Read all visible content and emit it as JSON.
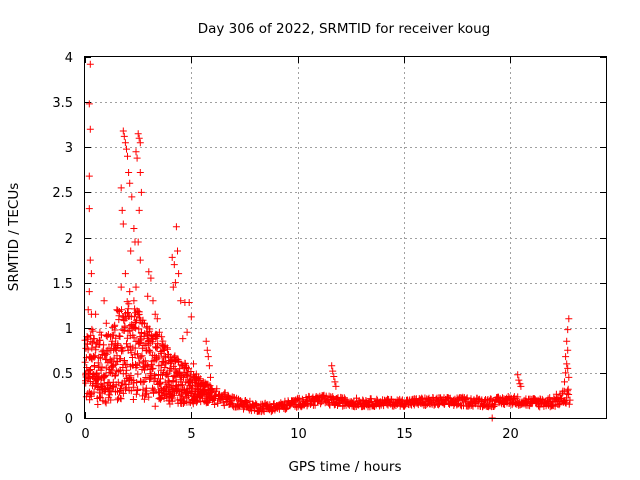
{
  "chart_data": {
    "type": "scatter",
    "title": "Day 306 of 2022, SRMTID for receiver koug",
    "xlabel": "GPS time / hours",
    "ylabel": "SRMTID / TECUs",
    "xlim": [
      0,
      24.5
    ],
    "ylim": [
      0,
      4
    ],
    "xticks": [
      0,
      5,
      10,
      15,
      20
    ],
    "yticks": [
      0,
      0.5,
      1,
      1.5,
      2,
      2.5,
      3,
      3.5,
      4
    ],
    "xtick_labels": [
      "0",
      "5",
      "10",
      "15",
      "20"
    ],
    "ytick_labels": [
      "0",
      "0.5",
      "1",
      "1.5",
      "2",
      "2.5",
      "3",
      "3.5",
      "4"
    ],
    "grid": true,
    "marker": "+",
    "series": [
      {
        "name": "SRMTID",
        "color": "#ff0000",
        "profile": [
          [
            0.0,
            0.55,
            0.35
          ],
          [
            0.3,
            0.6,
            0.4
          ],
          [
            0.6,
            0.55,
            0.35
          ],
          [
            1.0,
            0.55,
            0.4
          ],
          [
            1.5,
            0.7,
            0.5
          ],
          [
            2.0,
            0.75,
            0.55
          ],
          [
            2.5,
            0.7,
            0.5
          ],
          [
            3.0,
            0.6,
            0.4
          ],
          [
            3.5,
            0.55,
            0.35
          ],
          [
            4.0,
            0.45,
            0.3
          ],
          [
            4.5,
            0.4,
            0.25
          ],
          [
            5.0,
            0.35,
            0.2
          ],
          [
            5.5,
            0.3,
            0.12
          ],
          [
            6.0,
            0.25,
            0.1
          ],
          [
            7.0,
            0.18,
            0.06
          ],
          [
            8.0,
            0.12,
            0.05
          ],
          [
            9.0,
            0.12,
            0.05
          ],
          [
            10.0,
            0.17,
            0.05
          ],
          [
            11.0,
            0.2,
            0.06
          ],
          [
            12.0,
            0.18,
            0.05
          ],
          [
            13.0,
            0.17,
            0.05
          ],
          [
            14.0,
            0.17,
            0.04
          ],
          [
            15.0,
            0.17,
            0.04
          ],
          [
            16.0,
            0.18,
            0.05
          ],
          [
            17.0,
            0.18,
            0.05
          ],
          [
            18.0,
            0.18,
            0.05
          ],
          [
            19.0,
            0.17,
            0.05
          ],
          [
            20.0,
            0.2,
            0.05
          ],
          [
            21.0,
            0.17,
            0.05
          ],
          [
            22.0,
            0.18,
            0.06
          ],
          [
            22.8,
            0.25,
            0.1
          ]
        ],
        "outliers": [
          [
            0.25,
            3.92
          ],
          [
            0.2,
            3.48
          ],
          [
            0.25,
            3.2
          ],
          [
            0.2,
            2.68
          ],
          [
            0.2,
            2.32
          ],
          [
            0.25,
            1.75
          ],
          [
            0.3,
            1.6
          ],
          [
            0.2,
            1.4
          ],
          [
            0.15,
            1.2
          ],
          [
            0.3,
            1.15
          ],
          [
            1.8,
            3.18
          ],
          [
            1.85,
            3.12
          ],
          [
            1.9,
            3.05
          ],
          [
            1.95,
            2.98
          ],
          [
            2.0,
            2.9
          ],
          [
            2.05,
            2.72
          ],
          [
            2.1,
            2.6
          ],
          [
            1.7,
            2.55
          ],
          [
            1.75,
            2.3
          ],
          [
            1.8,
            2.15
          ],
          [
            2.2,
            2.45
          ],
          [
            2.3,
            2.1
          ],
          [
            2.35,
            1.95
          ],
          [
            2.15,
            1.85
          ],
          [
            1.9,
            1.6
          ],
          [
            2.4,
            2.95
          ],
          [
            2.45,
            2.88
          ],
          [
            2.5,
            3.15
          ],
          [
            2.55,
            3.1
          ],
          [
            2.6,
            3.05
          ],
          [
            2.6,
            2.72
          ],
          [
            2.65,
            2.5
          ],
          [
            2.55,
            2.3
          ],
          [
            2.5,
            1.95
          ],
          [
            2.6,
            1.75
          ],
          [
            2.4,
            1.45
          ],
          [
            2.3,
            1.3
          ],
          [
            2.1,
            1.4
          ],
          [
            1.7,
            1.45
          ],
          [
            1.5,
            1.2
          ],
          [
            3.0,
            1.62
          ],
          [
            3.1,
            1.55
          ],
          [
            2.95,
            1.35
          ],
          [
            3.2,
            1.3
          ],
          [
            3.3,
            1.15
          ],
          [
            2.8,
            1.05
          ],
          [
            2.9,
            1.0
          ],
          [
            3.4,
            1.1
          ],
          [
            3.5,
            0.95
          ],
          [
            3.6,
            0.9
          ],
          [
            4.1,
            1.78
          ],
          [
            4.2,
            1.7
          ],
          [
            4.3,
            2.12
          ],
          [
            4.35,
            1.85
          ],
          [
            4.4,
            1.6
          ],
          [
            4.25,
            1.5
          ],
          [
            4.15,
            1.45
          ],
          [
            4.5,
            1.3
          ],
          [
            4.7,
            1.28
          ],
          [
            4.9,
            1.28
          ],
          [
            5.0,
            1.12
          ],
          [
            4.8,
            0.95
          ],
          [
            4.6,
            0.88
          ],
          [
            5.1,
            0.6
          ],
          [
            5.15,
            0.45
          ],
          [
            5.7,
            0.85
          ],
          [
            5.75,
            0.75
          ],
          [
            5.8,
            0.68
          ],
          [
            5.85,
            0.58
          ],
          [
            5.9,
            0.45
          ],
          [
            11.6,
            0.58
          ],
          [
            11.65,
            0.52
          ],
          [
            11.7,
            0.46
          ],
          [
            11.75,
            0.4
          ],
          [
            11.8,
            0.35
          ],
          [
            20.35,
            0.48
          ],
          [
            20.4,
            0.42
          ],
          [
            20.45,
            0.38
          ],
          [
            20.5,
            0.35
          ],
          [
            19.15,
            0.0
          ],
          [
            22.75,
            1.1
          ],
          [
            22.7,
            0.98
          ],
          [
            22.65,
            0.85
          ],
          [
            22.7,
            0.75
          ],
          [
            22.6,
            0.68
          ],
          [
            22.65,
            0.6
          ],
          [
            22.7,
            0.55
          ],
          [
            22.6,
            0.5
          ],
          [
            22.75,
            0.45
          ],
          [
            22.55,
            0.4
          ],
          [
            0.5,
            1.15
          ],
          [
            0.7,
            0.95
          ],
          [
            1.0,
            1.05
          ],
          [
            1.2,
            0.9
          ],
          [
            0.9,
            1.3
          ],
          [
            3.8,
            0.6
          ],
          [
            3.9,
            0.7
          ],
          [
            4.0,
            0.55
          ],
          [
            3.3,
            0.13
          ],
          [
            0.6,
            0.15
          ]
        ]
      }
    ]
  }
}
